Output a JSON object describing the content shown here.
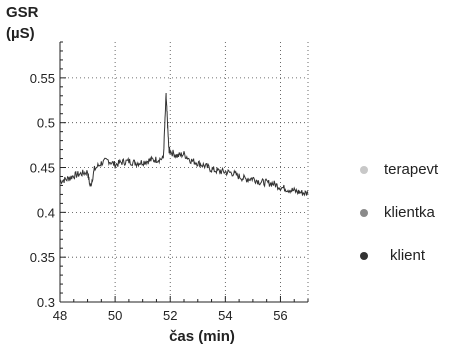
{
  "chart_data": {
    "type": "line",
    "ylabel_lines": [
      "GSR",
      "(µS)"
    ],
    "xlabel": "čas (min)",
    "xlim": [
      48,
      57
    ],
    "ylim": [
      0.3,
      0.59
    ],
    "x_ticks": [
      48,
      50,
      52,
      54,
      56
    ],
    "x_tick_labels": [
      "48",
      "50",
      "52",
      "54",
      "56"
    ],
    "y_ticks": [
      0.3,
      0.35,
      0.4,
      0.45,
      0.5,
      0.55
    ],
    "y_tick_labels": [
      "0.3",
      "0.35",
      "0.4",
      "0.45",
      "0.5",
      "0.55"
    ],
    "grid": "dotted",
    "legend_position": "right",
    "series": [
      {
        "name": "terapevt",
        "color": "#c8c8c8",
        "x": [],
        "y": []
      },
      {
        "name": "klientka",
        "color": "#8a8a8a",
        "x": [],
        "y": []
      },
      {
        "name": "klient",
        "color": "#333333",
        "x": [
          48.0,
          48.25,
          48.5,
          48.75,
          49.0,
          49.1,
          49.25,
          49.5,
          49.75,
          50.0,
          50.25,
          50.5,
          50.75,
          51.0,
          51.25,
          51.5,
          51.75,
          51.85,
          51.9,
          51.95,
          52.0,
          52.25,
          52.5,
          52.75,
          53.0,
          53.25,
          53.5,
          53.75,
          54.0,
          54.25,
          54.5,
          54.75,
          55.0,
          55.25,
          55.5,
          55.75,
          56.0,
          56.25,
          56.5,
          56.75,
          57.0
        ],
        "y": [
          0.435,
          0.437,
          0.441,
          0.443,
          0.445,
          0.428,
          0.448,
          0.455,
          0.458,
          0.453,
          0.456,
          0.457,
          0.455,
          0.456,
          0.458,
          0.459,
          0.46,
          0.53,
          0.5,
          0.47,
          0.468,
          0.463,
          0.465,
          0.458,
          0.455,
          0.452,
          0.448,
          0.446,
          0.445,
          0.444,
          0.44,
          0.437,
          0.438,
          0.434,
          0.433,
          0.432,
          0.428,
          0.426,
          0.424,
          0.422,
          0.421
        ]
      }
    ]
  }
}
